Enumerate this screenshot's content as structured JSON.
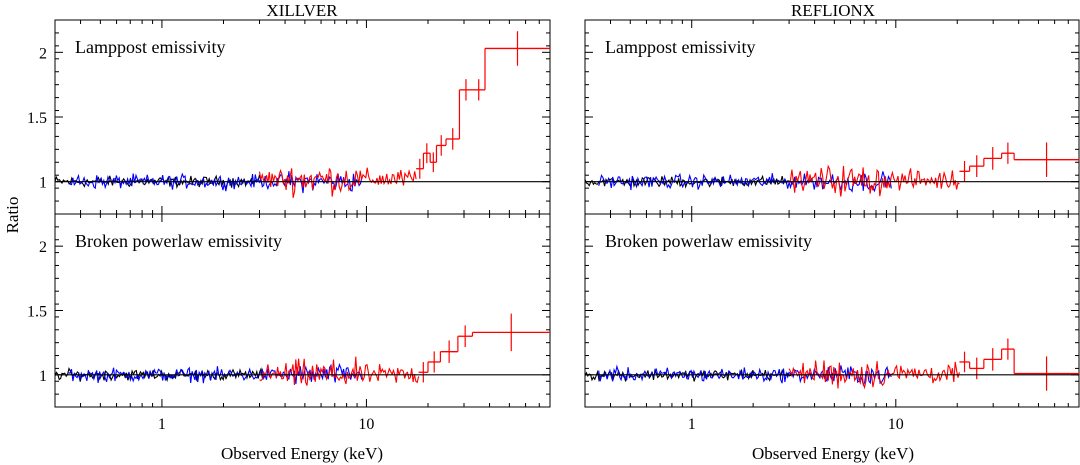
{
  "figure": {
    "xlabel": "Observed Energy (keV)",
    "ylabel": "Ratio"
  },
  "chart_data": [
    {
      "type": "line",
      "title": "XILLVER",
      "xlabel": "Observed Energy (keV)",
      "ylabel": "Ratio",
      "x_scale": "log",
      "xlim": [
        0.3,
        79
      ],
      "x_ticks": [
        1,
        10
      ],
      "panels": [
        {
          "label": "Lamppost emissivity",
          "ylim": [
            0.75,
            2.25
          ],
          "y_ticks": [
            1,
            1.5,
            2
          ],
          "reference_line": 1,
          "series": [
            {
              "color": "#000000",
              "x_range": [
                0.3,
                3.1
              ],
              "level": 1.0,
              "scatter": 0.035
            },
            {
              "color": "#0000ff",
              "x_range": [
                0.35,
                9.5
              ],
              "level": 1.0,
              "scatter": 0.045
            },
            {
              "color": "#ff0000",
              "x_range": [
                3.0,
                17.5
              ],
              "level": 1.02,
              "scatter": 0.065
            },
            {
              "color": "#ff0000",
              "type": "binned",
              "bins": [
                {
                  "x0": 17.5,
                  "x1": 19.0,
                  "y": 1.1
                },
                {
                  "x0": 19.0,
                  "x1": 20.5,
                  "y": 1.22
                },
                {
                  "x0": 20.5,
                  "x1": 22.0,
                  "y": 1.15
                },
                {
                  "x0": 22.0,
                  "x1": 24.5,
                  "y": 1.28
                },
                {
                  "x0": 24.5,
                  "x1": 28.5,
                  "y": 1.33
                },
                {
                  "x0": 28.5,
                  "x1": 33.0,
                  "y": 1.71
                },
                {
                  "x0": 33.0,
                  "x1": 38.0,
                  "y": 1.71
                },
                {
                  "x0": 38.0,
                  "x1": 79.0,
                  "y": 2.03
                }
              ]
            }
          ]
        },
        {
          "label": "Broken powerlaw emissivity",
          "ylim": [
            0.75,
            2.25
          ],
          "y_ticks": [
            1,
            1.5,
            2
          ],
          "reference_line": 1,
          "series": [
            {
              "color": "#000000",
              "x_range": [
                0.3,
                3.1
              ],
              "level": 1.0,
              "scatter": 0.035
            },
            {
              "color": "#0000ff",
              "x_range": [
                0.35,
                9.5
              ],
              "level": 1.0,
              "scatter": 0.045
            },
            {
              "color": "#ff0000",
              "x_range": [
                3.0,
                18.0
              ],
              "level": 1.0,
              "scatter": 0.065
            },
            {
              "color": "#ff0000",
              "type": "binned",
              "bins": [
                {
                  "x0": 18.0,
                  "x1": 20.0,
                  "y": 1.02
                },
                {
                  "x0": 20.0,
                  "x1": 23.0,
                  "y": 1.1
                },
                {
                  "x0": 23.0,
                  "x1": 28.0,
                  "y": 1.18
                },
                {
                  "x0": 28.0,
                  "x1": 33.0,
                  "y": 1.3
                },
                {
                  "x0": 33.0,
                  "x1": 79.0,
                  "y": 1.33
                }
              ]
            }
          ]
        }
      ]
    },
    {
      "type": "line",
      "title": "REFLIONX",
      "xlabel": "Observed Energy (keV)",
      "ylabel": "",
      "x_scale": "log",
      "xlim": [
        0.3,
        79
      ],
      "x_ticks": [
        1,
        10
      ],
      "panels": [
        {
          "label": "Lamppost emissivity",
          "ylim": [
            0.75,
            2.25
          ],
          "y_ticks": [
            1,
            1.5,
            2
          ],
          "reference_line": 1,
          "series": [
            {
              "color": "#000000",
              "x_range": [
                0.3,
                3.1
              ],
              "level": 1.0,
              "scatter": 0.035
            },
            {
              "color": "#0000ff",
              "x_range": [
                0.35,
                9.5
              ],
              "level": 1.0,
              "scatter": 0.045
            },
            {
              "color": "#ff0000",
              "x_range": [
                3.0,
                20.5
              ],
              "level": 1.01,
              "scatter": 0.065
            },
            {
              "color": "#ff0000",
              "type": "binned",
              "bins": [
                {
                  "x0": 20.5,
                  "x1": 23.0,
                  "y": 1.08
                },
                {
                  "x0": 23.0,
                  "x1": 27.0,
                  "y": 1.12
                },
                {
                  "x0": 27.0,
                  "x1": 33.0,
                  "y": 1.18
                },
                {
                  "x0": 33.0,
                  "x1": 38.0,
                  "y": 1.22
                },
                {
                  "x0": 38.0,
                  "x1": 79.0,
                  "y": 1.17
                }
              ]
            }
          ]
        },
        {
          "label": "Broken powerlaw emissivity",
          "ylim": [
            0.75,
            2.25
          ],
          "y_ticks": [
            1,
            1.5,
            2
          ],
          "reference_line": 1,
          "series": [
            {
              "color": "#000000",
              "x_range": [
                0.3,
                3.1
              ],
              "level": 1.0,
              "scatter": 0.035
            },
            {
              "color": "#0000ff",
              "x_range": [
                0.35,
                9.5
              ],
              "level": 1.0,
              "scatter": 0.045
            },
            {
              "color": "#ff0000",
              "x_range": [
                3.0,
                20.5
              ],
              "level": 1.01,
              "scatter": 0.065
            },
            {
              "color": "#ff0000",
              "type": "binned",
              "bins": [
                {
                  "x0": 20.5,
                  "x1": 23.0,
                  "y": 1.1
                },
                {
                  "x0": 23.0,
                  "x1": 27.0,
                  "y": 1.05
                },
                {
                  "x0": 27.0,
                  "x1": 33.0,
                  "y": 1.12
                },
                {
                  "x0": 33.0,
                  "x1": 38.0,
                  "y": 1.2
                },
                {
                  "x0": 38.0,
                  "x1": 79.0,
                  "y": 1.01
                }
              ]
            }
          ]
        }
      ]
    }
  ]
}
